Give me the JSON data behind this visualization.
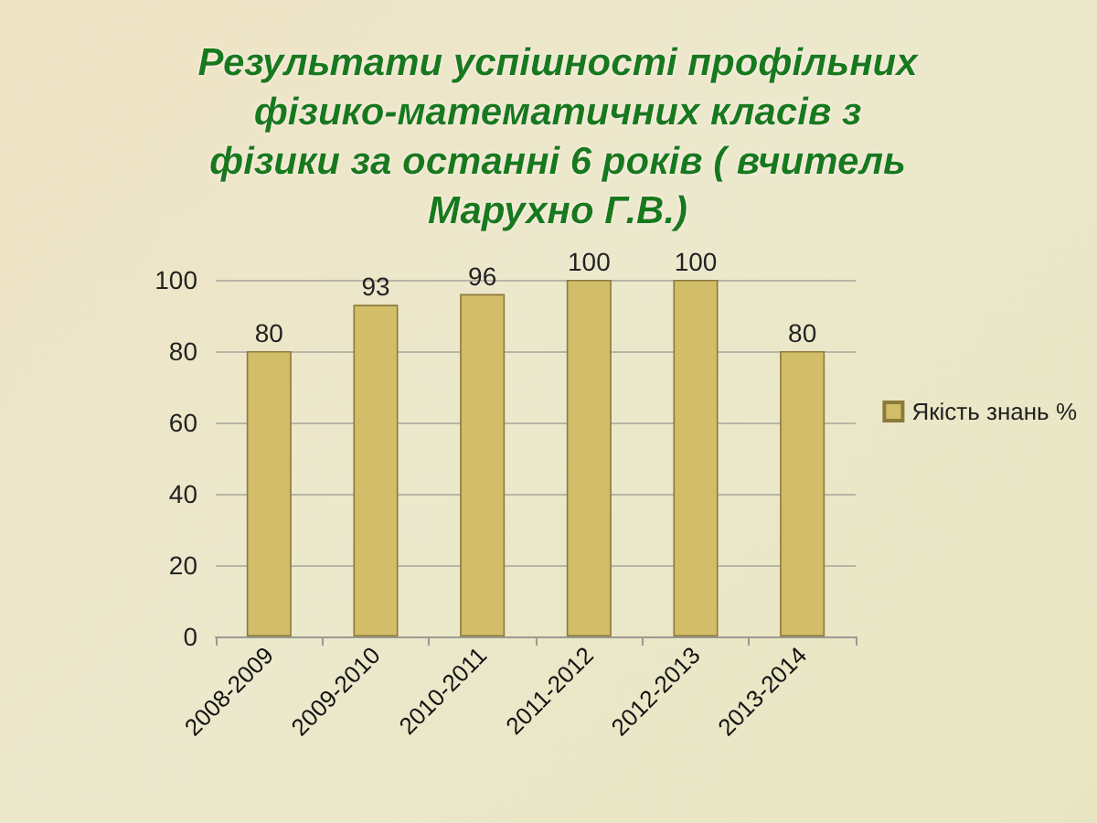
{
  "chart_data": {
    "type": "bar",
    "title": "Результати успішності профільних\nфізико-математичних класів з\nфізики за останні 6 років ( вчитель\nМарухно Г.В.)",
    "categories": [
      "2008-2009",
      "2009-2010",
      "2010-2011",
      "2011-2012",
      "2012-2013",
      "2013-2014"
    ],
    "series": [
      {
        "name": "Якість знань %",
        "color": "#d2bd68",
        "values": [
          80,
          93,
          96,
          100,
          100,
          80
        ]
      }
    ],
    "ylim": [
      0,
      100
    ],
    "yticks": [
      0,
      20,
      40,
      60,
      80,
      100
    ],
    "grid": "y",
    "legend": "right",
    "data_labels": true
  }
}
